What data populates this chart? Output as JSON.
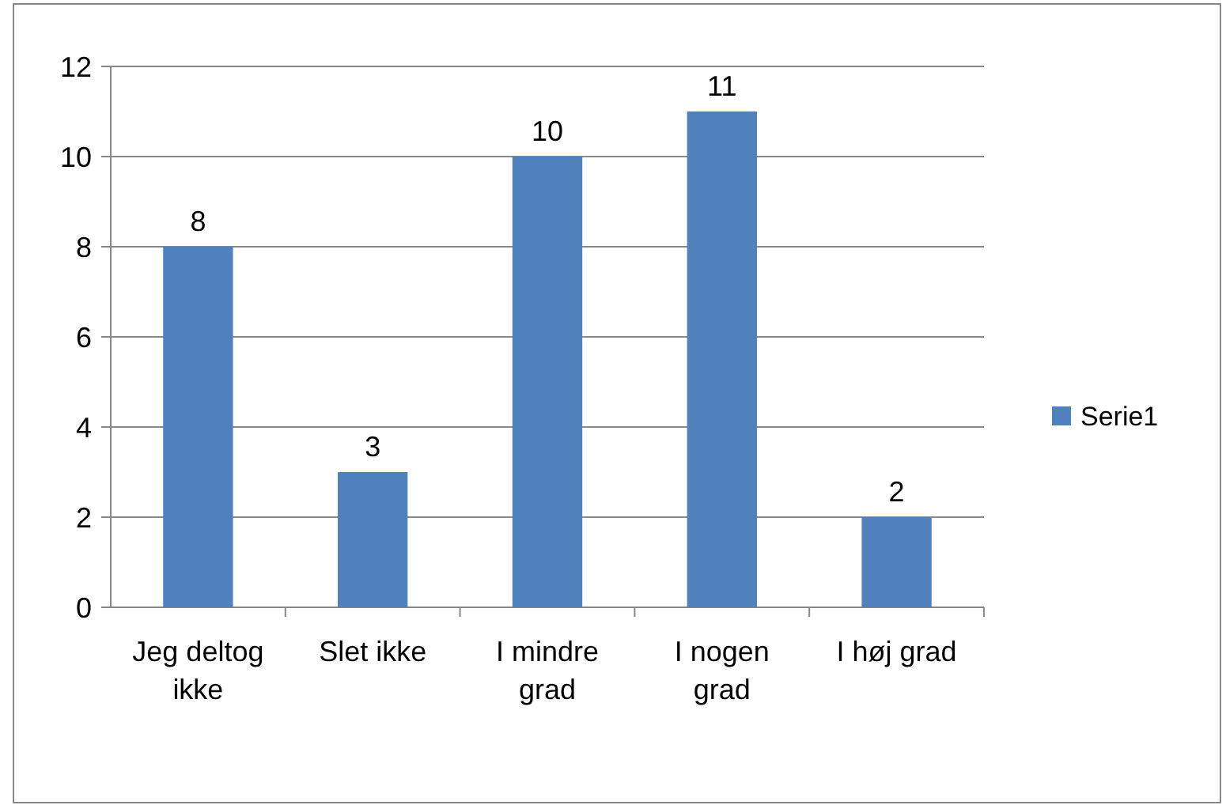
{
  "chart_data": {
    "type": "bar",
    "categories": [
      "Jeg deltog ikke",
      "Slet ikke",
      "I mindre grad",
      "I nogen grad",
      "I høj grad"
    ],
    "series": [
      {
        "name": "Serie1",
        "color": "#4f81bd",
        "values": [
          8,
          3,
          10,
          11,
          2
        ]
      }
    ],
    "ylim": [
      0,
      12
    ],
    "yticks": [
      0,
      2,
      4,
      6,
      8,
      10,
      12
    ],
    "grid": "y",
    "legend": "right",
    "data_labels": true
  }
}
